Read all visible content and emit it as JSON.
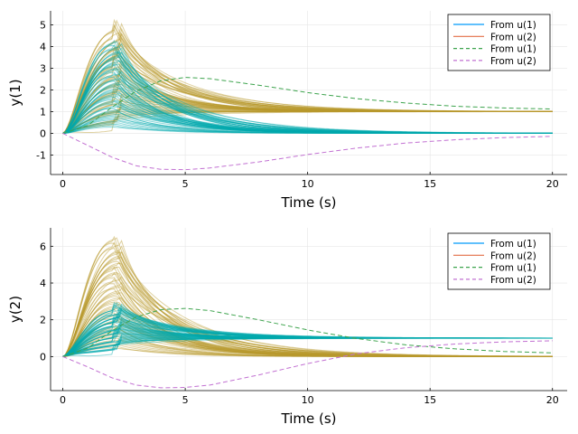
{
  "colors": {
    "series_u1": "#009AFA",
    "series_u2": "#E36F47",
    "dashed_u1": "#3EA44E",
    "dashed_u2": "#C271D2",
    "ensemble_teal": "#00A9AD",
    "ensemble_gold": "#B89A2C",
    "grid": "#E6E6E6"
  },
  "chart_data": [
    {
      "type": "line",
      "ylabel": "y(1)",
      "xlabel": "Time (s)",
      "xlim": [
        -0.5,
        20.6
      ],
      "ylim": [
        -1.9,
        5.65
      ],
      "xticks": [
        0,
        5,
        10,
        15,
        20
      ],
      "yticks": [
        -1,
        0,
        1,
        2,
        3,
        4,
        5
      ],
      "grid": true,
      "legend_position": "top-right",
      "legend": [
        {
          "label": "From u(1)",
          "style": "solid",
          "color": "#009AFA"
        },
        {
          "label": "From u(2)",
          "style": "solid",
          "color": "#E36F47"
        },
        {
          "label": "From u(1)",
          "style": "dashed",
          "color": "#3EA44E"
        },
        {
          "label": "From u(2)",
          "style": "dashed",
          "color": "#C271D2"
        }
      ],
      "ensembles": [
        {
          "name": "From u(2)",
          "color": "#B89A2C",
          "peak_time": 2.2,
          "final": 1.0,
          "peak_range": [
            0.6,
            5.35
          ],
          "count": 60
        },
        {
          "name": "From u(1)",
          "color": "#00A9AD",
          "peak_time": 2.2,
          "final": 0.0,
          "peak_range": [
            0.3,
            4.4
          ],
          "count": 60
        }
      ],
      "dashed_series": [
        {
          "name": "From u(1)",
          "color": "#3EA44E",
          "x": [
            0,
            1,
            2,
            3,
            4,
            5,
            6,
            8,
            10,
            12,
            14,
            16,
            18,
            20
          ],
          "y": [
            0,
            0.35,
            1.2,
            1.95,
            2.42,
            2.58,
            2.52,
            2.22,
            1.88,
            1.6,
            1.4,
            1.25,
            1.17,
            1.12
          ]
        },
        {
          "name": "From u(2)",
          "color": "#C271D2",
          "x": [
            0,
            1,
            2,
            3,
            4,
            5,
            6,
            8,
            10,
            12,
            14,
            16,
            18,
            20
          ],
          "y": [
            0,
            -0.55,
            -1.1,
            -1.5,
            -1.66,
            -1.68,
            -1.6,
            -1.32,
            -0.98,
            -0.68,
            -0.45,
            -0.3,
            -0.2,
            -0.14
          ]
        }
      ]
    },
    {
      "type": "line",
      "ylabel": "y(2)",
      "xlabel": "Time (s)",
      "xlim": [
        -0.5,
        20.6
      ],
      "ylim": [
        -1.85,
        7.0
      ],
      "xticks": [
        0,
        5,
        10,
        15,
        20
      ],
      "yticks": [
        0,
        2,
        4,
        6
      ],
      "grid": true,
      "legend_position": "top-right",
      "legend": [
        {
          "label": "From u(1)",
          "style": "solid",
          "color": "#009AFA"
        },
        {
          "label": "From u(2)",
          "style": "solid",
          "color": "#E36F47"
        },
        {
          "label": "From u(1)",
          "style": "dashed",
          "color": "#3EA44E"
        },
        {
          "label": "From u(2)",
          "style": "dashed",
          "color": "#C271D2"
        }
      ],
      "ensembles": [
        {
          "name": "From u(2)",
          "color": "#B89A2C",
          "peak_time": 2.2,
          "final": 0.0,
          "peak_range": [
            0.5,
            6.7
          ],
          "count": 60
        },
        {
          "name": "From u(1)",
          "color": "#00A9AD",
          "peak_time": 2.2,
          "final": 1.0,
          "peak_range": [
            0.6,
            3.0
          ],
          "count": 60
        }
      ],
      "dashed_series": [
        {
          "name": "From u(1)",
          "color": "#3EA44E",
          "x": [
            0,
            1,
            2,
            3,
            4,
            5,
            6,
            8,
            10,
            12,
            14,
            16,
            18,
            20
          ],
          "y": [
            0,
            0.45,
            1.4,
            2.15,
            2.55,
            2.62,
            2.5,
            2.0,
            1.45,
            0.98,
            0.64,
            0.42,
            0.28,
            0.2
          ]
        },
        {
          "name": "From u(2)",
          "color": "#C271D2",
          "x": [
            0,
            1,
            2,
            3,
            4,
            5,
            6,
            8,
            10,
            12,
            14,
            16,
            18,
            20
          ],
          "y": [
            0,
            -0.55,
            -1.15,
            -1.55,
            -1.7,
            -1.68,
            -1.55,
            -1.0,
            -0.38,
            0.15,
            0.48,
            0.68,
            0.8,
            0.86
          ]
        }
      ]
    }
  ]
}
